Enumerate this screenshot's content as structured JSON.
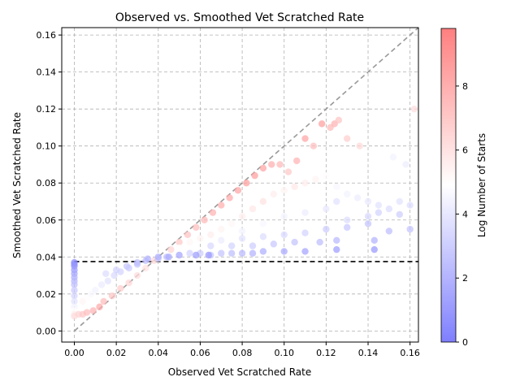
{
  "chart_data": {
    "type": "scatter",
    "title": "Observed vs. Smoothed Vet Scratched Rate",
    "xlabel": "Observed Vet Scratched Rate",
    "ylabel": "Smoothed Vet Scratched Rate",
    "xlim": [
      -0.006,
      0.164
    ],
    "ylim": [
      -0.006,
      0.164
    ],
    "xticks": [
      0.0,
      0.02,
      0.04,
      0.06,
      0.08,
      0.1,
      0.12,
      0.14,
      0.16
    ],
    "yticks": [
      0.0,
      0.02,
      0.04,
      0.06,
      0.08,
      0.1,
      0.12,
      0.14,
      0.16
    ],
    "grid": true,
    "reference_lines": [
      {
        "kind": "diagonal",
        "style": "dashed",
        "color": "#999999",
        "from": [
          0,
          0
        ],
        "to": [
          0.164,
          0.164
        ]
      },
      {
        "kind": "horizontal",
        "style": "dashed",
        "color": "#000000",
        "y": 0.0375
      }
    ],
    "colorbar": {
      "label": "Log Number of Starts",
      "min": 0,
      "max": 9.8,
      "ticks": [
        0,
        2,
        4,
        6,
        8
      ],
      "colormap": "bwr",
      "low_color": "#7f7fff",
      "mid_color": "#ffffff",
      "high_color": "#ff7f7f"
    },
    "points_summary": "many points; x = observed rate, y = smoothed rate, color = log number of starts",
    "points": [
      [
        0.0,
        0.037,
        0.3
      ],
      [
        0.0,
        0.036,
        0.6
      ],
      [
        0.0,
        0.035,
        0.9
      ],
      [
        0.0,
        0.033,
        1.2
      ],
      [
        0.0,
        0.031,
        1.5
      ],
      [
        0.0,
        0.029,
        1.9
      ],
      [
        0.0,
        0.027,
        2.2
      ],
      [
        0.0,
        0.025,
        2.5
      ],
      [
        0.0,
        0.022,
        2.9
      ],
      [
        0.0,
        0.019,
        3.3
      ],
      [
        0.0,
        0.016,
        3.8
      ],
      [
        0.0,
        0.013,
        4.4
      ],
      [
        0.0,
        0.011,
        5.0
      ],
      [
        0.0,
        0.009,
        5.6
      ],
      [
        0.0,
        0.008,
        6.2
      ],
      [
        0.002,
        0.009,
        6.6
      ],
      [
        0.004,
        0.009,
        7.0
      ],
      [
        0.006,
        0.01,
        7.4
      ],
      [
        0.009,
        0.011,
        7.8
      ],
      [
        0.012,
        0.013,
        8.2
      ],
      [
        0.004,
        0.016,
        5.3
      ],
      [
        0.006,
        0.018,
        5.0
      ],
      [
        0.008,
        0.02,
        4.7
      ],
      [
        0.01,
        0.022,
        4.4
      ],
      [
        0.013,
        0.025,
        4.1
      ],
      [
        0.016,
        0.027,
        3.8
      ],
      [
        0.019,
        0.03,
        3.5
      ],
      [
        0.022,
        0.032,
        3.2
      ],
      [
        0.026,
        0.034,
        2.9
      ],
      [
        0.03,
        0.036,
        2.6
      ],
      [
        0.034,
        0.038,
        2.4
      ],
      [
        0.014,
        0.016,
        7.5
      ],
      [
        0.018,
        0.019,
        7.2
      ],
      [
        0.022,
        0.023,
        6.8
      ],
      [
        0.026,
        0.026,
        6.5
      ],
      [
        0.03,
        0.03,
        6.2
      ],
      [
        0.034,
        0.034,
        6.0
      ],
      [
        0.038,
        0.038,
        6.4
      ],
      [
        0.04,
        0.039,
        3.0
      ],
      [
        0.044,
        0.04,
        2.5
      ],
      [
        0.046,
        0.044,
        6.6
      ],
      [
        0.05,
        0.048,
        7.0
      ],
      [
        0.054,
        0.052,
        7.2
      ],
      [
        0.058,
        0.056,
        7.4
      ],
      [
        0.062,
        0.06,
        7.6
      ],
      [
        0.066,
        0.064,
        7.8
      ],
      [
        0.07,
        0.068,
        8.0
      ],
      [
        0.074,
        0.072,
        8.2
      ],
      [
        0.078,
        0.076,
        8.4
      ],
      [
        0.082,
        0.08,
        8.6
      ],
      [
        0.086,
        0.084,
        8.6
      ],
      [
        0.09,
        0.088,
        8.4
      ],
      [
        0.094,
        0.09,
        8.0
      ],
      [
        0.098,
        0.09,
        7.6
      ],
      [
        0.102,
        0.086,
        7.0
      ],
      [
        0.106,
        0.092,
        7.8
      ],
      [
        0.11,
        0.104,
        8.4
      ],
      [
        0.114,
        0.1,
        7.4
      ],
      [
        0.118,
        0.112,
        8.6
      ],
      [
        0.122,
        0.11,
        7.6
      ],
      [
        0.124,
        0.112,
        7.8
      ],
      [
        0.126,
        0.114,
        7.2
      ],
      [
        0.13,
        0.104,
        6.8
      ],
      [
        0.136,
        0.1,
        6.4
      ],
      [
        0.162,
        0.12,
        6.2
      ],
      [
        0.05,
        0.045,
        5.0
      ],
      [
        0.055,
        0.048,
        5.2
      ],
      [
        0.06,
        0.05,
        5.4
      ],
      [
        0.065,
        0.052,
        5.6
      ],
      [
        0.07,
        0.055,
        5.4
      ],
      [
        0.075,
        0.058,
        5.2
      ],
      [
        0.08,
        0.062,
        5.6
      ],
      [
        0.085,
        0.066,
        5.8
      ],
      [
        0.09,
        0.07,
        6.0
      ],
      [
        0.095,
        0.074,
        5.6
      ],
      [
        0.1,
        0.076,
        5.4
      ],
      [
        0.105,
        0.078,
        5.8
      ],
      [
        0.11,
        0.08,
        5.6
      ],
      [
        0.115,
        0.082,
        5.4
      ],
      [
        0.12,
        0.084,
        5.0
      ],
      [
        0.125,
        0.078,
        4.6
      ],
      [
        0.13,
        0.074,
        4.4
      ],
      [
        0.135,
        0.072,
        4.2
      ],
      [
        0.14,
        0.07,
        4.0
      ],
      [
        0.145,
        0.068,
        3.8
      ],
      [
        0.15,
        0.066,
        3.6
      ],
      [
        0.155,
        0.07,
        3.8
      ],
      [
        0.16,
        0.068,
        3.6
      ],
      [
        0.158,
        0.09,
        4.2
      ],
      [
        0.152,
        0.094,
        4.4
      ],
      [
        0.055,
        0.042,
        3.2
      ],
      [
        0.06,
        0.042,
        3.0
      ],
      [
        0.065,
        0.041,
        2.8
      ],
      [
        0.07,
        0.042,
        2.6
      ],
      [
        0.075,
        0.042,
        2.4
      ],
      [
        0.08,
        0.042,
        2.2
      ],
      [
        0.085,
        0.042,
        2.0
      ],
      [
        0.09,
        0.043,
        1.8
      ],
      [
        0.1,
        0.043,
        1.6
      ],
      [
        0.11,
        0.043,
        1.4
      ],
      [
        0.125,
        0.044,
        1.2
      ],
      [
        0.143,
        0.044,
        1.0
      ],
      [
        0.065,
        0.046,
        3.4
      ],
      [
        0.075,
        0.046,
        3.2
      ],
      [
        0.085,
        0.046,
        3.0
      ],
      [
        0.095,
        0.047,
        2.8
      ],
      [
        0.105,
        0.048,
        2.6
      ],
      [
        0.117,
        0.048,
        2.4
      ],
      [
        0.125,
        0.049,
        2.2
      ],
      [
        0.143,
        0.049,
        2.0
      ],
      [
        0.08,
        0.05,
        3.8
      ],
      [
        0.09,
        0.051,
        3.6
      ],
      [
        0.1,
        0.052,
        3.4
      ],
      [
        0.11,
        0.053,
        3.2
      ],
      [
        0.12,
        0.055,
        3.0
      ],
      [
        0.13,
        0.056,
        2.8
      ],
      [
        0.14,
        0.058,
        2.6
      ],
      [
        0.15,
        0.054,
        2.4
      ],
      [
        0.16,
        0.055,
        2.6
      ],
      [
        0.155,
        0.063,
        3.0
      ],
      [
        0.07,
        0.049,
        4.2
      ],
      [
        0.08,
        0.054,
        4.4
      ],
      [
        0.09,
        0.058,
        4.6
      ],
      [
        0.1,
        0.062,
        4.4
      ],
      [
        0.11,
        0.064,
        4.2
      ],
      [
        0.12,
        0.066,
        4.0
      ],
      [
        0.13,
        0.06,
        3.6
      ],
      [
        0.14,
        0.062,
        3.4
      ],
      [
        0.145,
        0.064,
        3.2
      ],
      [
        0.125,
        0.07,
        3.8
      ],
      [
        0.015,
        0.031,
        3.6
      ],
      [
        0.02,
        0.033,
        3.2
      ],
      [
        0.025,
        0.035,
        2.8
      ],
      [
        0.03,
        0.037,
        2.4
      ],
      [
        0.035,
        0.039,
        2.0
      ],
      [
        0.04,
        0.04,
        1.8
      ],
      [
        0.045,
        0.04,
        1.6
      ],
      [
        0.05,
        0.041,
        1.4
      ],
      [
        0.058,
        0.041,
        1.2
      ],
      [
        0.064,
        0.041,
        1.0
      ]
    ]
  }
}
